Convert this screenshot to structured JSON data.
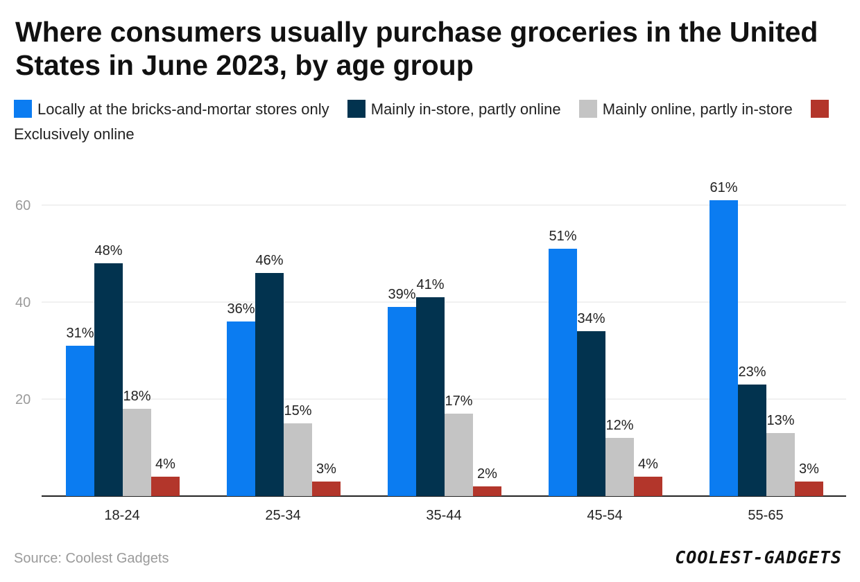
{
  "chart_data": {
    "type": "bar",
    "title": "Where consumers usually purchase groceries in the United States in June 2023, by age group",
    "categories": [
      "18-24",
      "25-34",
      "35-44",
      "45-54",
      "55-65"
    ],
    "series": [
      {
        "name": "Locally at the bricks-and-mortar stores only",
        "color": "#0b7cf1",
        "values": [
          31,
          36,
          39,
          51,
          61
        ],
        "labels": [
          "31%",
          "36%",
          "39%",
          "51%",
          "61%"
        ]
      },
      {
        "name": "Mainly in-store, partly online",
        "color": "#02334f",
        "values": [
          48,
          46,
          41,
          34,
          23
        ],
        "labels": [
          "48%",
          "46%",
          "41%",
          "34%",
          "23%"
        ]
      },
      {
        "name": "Mainly online, partly in-store",
        "color": "#c4c4c4",
        "values": [
          18,
          15,
          17,
          12,
          13
        ],
        "labels": [
          "18%",
          "15%",
          "17%",
          "12%",
          "13%"
        ]
      },
      {
        "name": "Exclusively online",
        "color": "#b3362b",
        "values": [
          4,
          3,
          2,
          4,
          3
        ],
        "labels": [
          "4%",
          "3%",
          "2%",
          "4%",
          "3%"
        ]
      }
    ],
    "yticks": [
      20,
      40,
      60
    ],
    "ylim": [
      0,
      60
    ],
    "grid": true,
    "legend_position": "top"
  },
  "source": "Source: Coolest Gadgets",
  "brand": "COOLEST-GADGETS"
}
